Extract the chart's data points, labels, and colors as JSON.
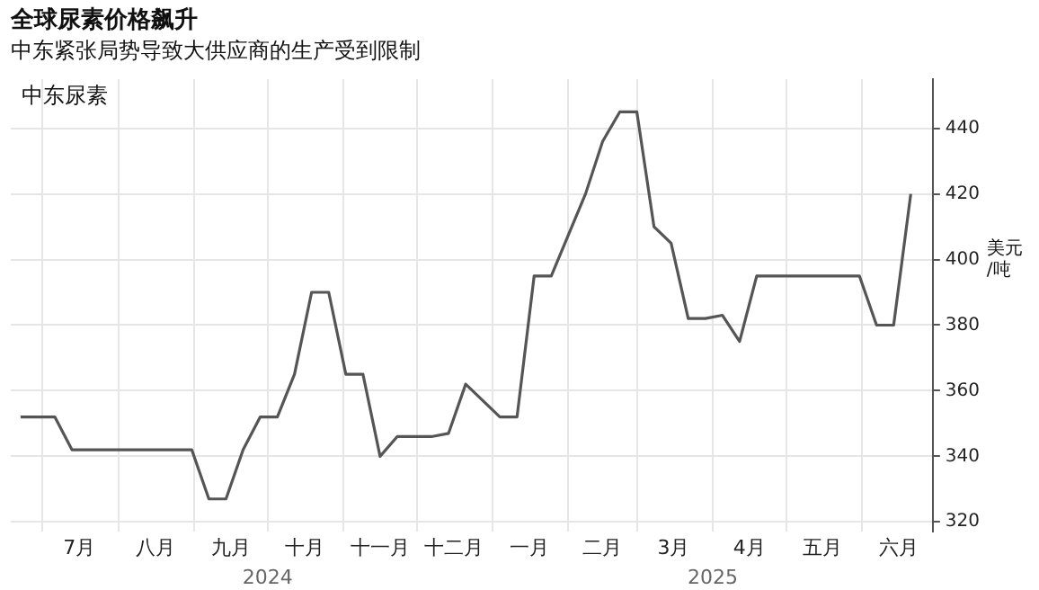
{
  "chart_data": {
    "type": "line",
    "title": "全球尿素价格飙升",
    "subtitle": "中东紧张局势导致大供应商的生产受到限制",
    "ylabel": "美元/吨",
    "annotations": [
      "中东尿素"
    ],
    "x": [
      "2024-06-22",
      "2024-07-06",
      "2024-07-13",
      "2024-08-31",
      "2024-09-07",
      "2024-09-14",
      "2024-09-21",
      "2024-09-28",
      "2024-10-05",
      "2024-10-12",
      "2024-10-19",
      "2024-10-26",
      "2024-11-02",
      "2024-11-09",
      "2024-11-16",
      "2024-11-23",
      "2024-12-07",
      "2024-12-14",
      "2024-12-21",
      "2025-01-04",
      "2025-01-11",
      "2025-01-18",
      "2025-01-25",
      "2025-02-08",
      "2025-02-15",
      "2025-02-22",
      "2025-03-01",
      "2025-03-08",
      "2025-03-15",
      "2025-03-22",
      "2025-03-29",
      "2025-04-05",
      "2025-04-12",
      "2025-04-19",
      "2025-05-31",
      "2025-06-07",
      "2025-06-14",
      "2025-06-21"
    ],
    "series": [
      {
        "color": "#555555",
        "values": [
          352,
          352,
          342,
          342,
          327,
          327,
          342,
          352,
          352,
          365,
          390,
          390,
          365,
          365,
          340,
          346,
          346,
          347,
          362,
          352,
          352,
          395,
          395,
          420,
          436,
          445,
          445,
          410,
          405,
          382,
          382,
          383,
          375,
          395,
          395,
          380,
          380,
          420
        ]
      }
    ],
    "xlim": [
      "2024-06-18",
      "2025-06-30"
    ],
    "xticks": [
      {
        "value": "2024-07-01",
        "label": null
      },
      {
        "value": "2024-07-16",
        "label": "7月"
      },
      {
        "value": "2024-08-01",
        "label": null
      },
      {
        "value": "2024-08-16",
        "label": "八月"
      },
      {
        "value": "2024-09-01",
        "label": null
      },
      {
        "value": "2024-09-16",
        "label": "九月"
      },
      {
        "value": "2024-10-01",
        "label": null
      },
      {
        "value": "2024-10-16",
        "label": "十月"
      },
      {
        "value": "2024-11-01",
        "label": null
      },
      {
        "value": "2024-11-16",
        "label": "十一月"
      },
      {
        "value": "2024-12-01",
        "label": null
      },
      {
        "value": "2024-12-16",
        "label": "十二月"
      },
      {
        "value": "2025-01-01",
        "label": null
      },
      {
        "value": "2025-01-16",
        "label": "一月"
      },
      {
        "value": "2025-02-01",
        "label": null
      },
      {
        "value": "2025-02-15",
        "label": "二月"
      },
      {
        "value": "2025-03-01",
        "label": null
      },
      {
        "value": "2025-03-16",
        "label": "3月"
      },
      {
        "value": "2025-04-01",
        "label": null
      },
      {
        "value": "2025-04-16",
        "label": "4月"
      },
      {
        "value": "2025-05-01",
        "label": null
      },
      {
        "value": "2025-05-16",
        "label": "五月"
      },
      {
        "value": "2025-06-01",
        "label": null
      },
      {
        "value": "2025-06-16",
        "label": "六月"
      }
    ],
    "x2lim": [
      "2024-06-18",
      "2025-06-30"
    ],
    "x2ticks": [
      {
        "value": "2024-10-01",
        "label": "2024"
      },
      {
        "value": "2025-04-01",
        "label": "2025"
      }
    ],
    "ylim": [
      317,
      455
    ],
    "yticks": [
      320,
      340,
      360,
      380,
      400,
      420,
      440
    ],
    "grid": true,
    "marker": "none",
    "line_style": "solid"
  }
}
